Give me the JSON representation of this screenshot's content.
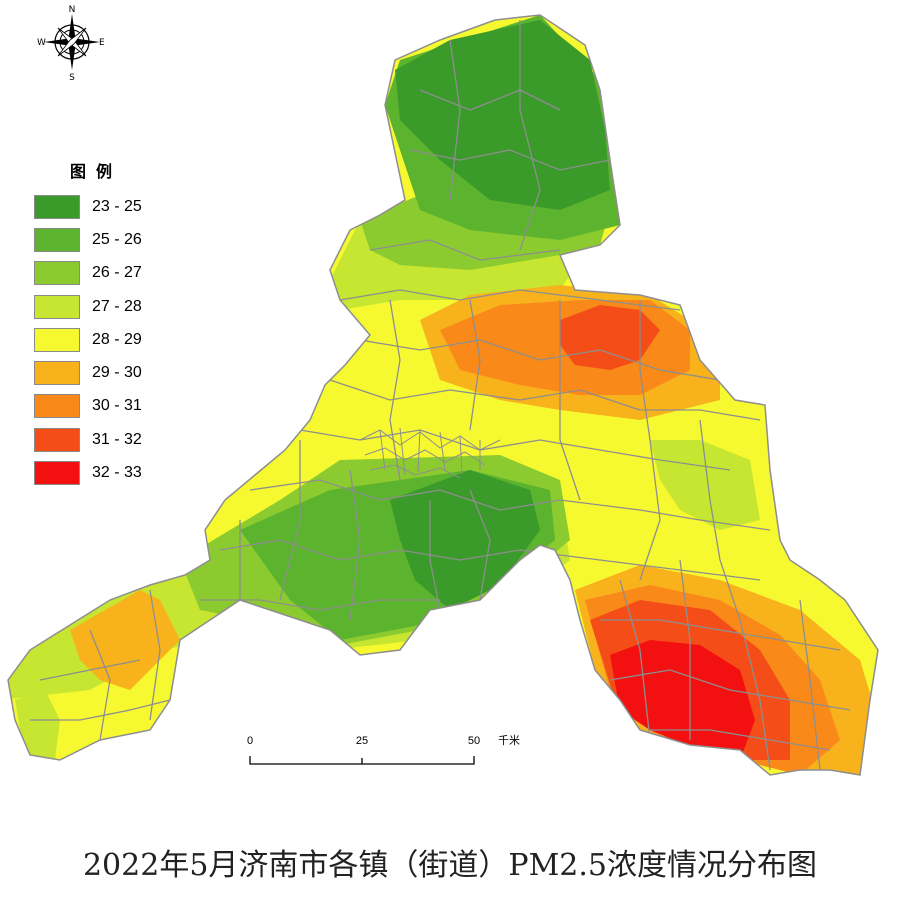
{
  "title": "2022年5月济南市各镇（街道）PM2.5浓度情况分布图",
  "legend": {
    "title": "图例",
    "items": [
      {
        "label": "23 - 25",
        "color": "#3a9a2a"
      },
      {
        "label": "25 - 26",
        "color": "#5cb32e"
      },
      {
        "label": "26 - 27",
        "color": "#8ccb2f"
      },
      {
        "label": "27 - 28",
        "color": "#c6e631"
      },
      {
        "label": "28 - 29",
        "color": "#f6f930"
      },
      {
        "label": "29 - 30",
        "color": "#f8b21c"
      },
      {
        "label": "30 - 31",
        "color": "#f98a1a"
      },
      {
        "label": "31 - 32",
        "color": "#f54d18"
      },
      {
        "label": "32 - 33",
        "color": "#f21010"
      }
    ]
  },
  "compass": {
    "n": "N",
    "s": "S",
    "e": "E",
    "w": "W"
  },
  "scale_bar": {
    "ticks": [
      "0",
      "25",
      "50"
    ],
    "unit": "千米"
  },
  "boundary_color": "#8e8e8e"
}
